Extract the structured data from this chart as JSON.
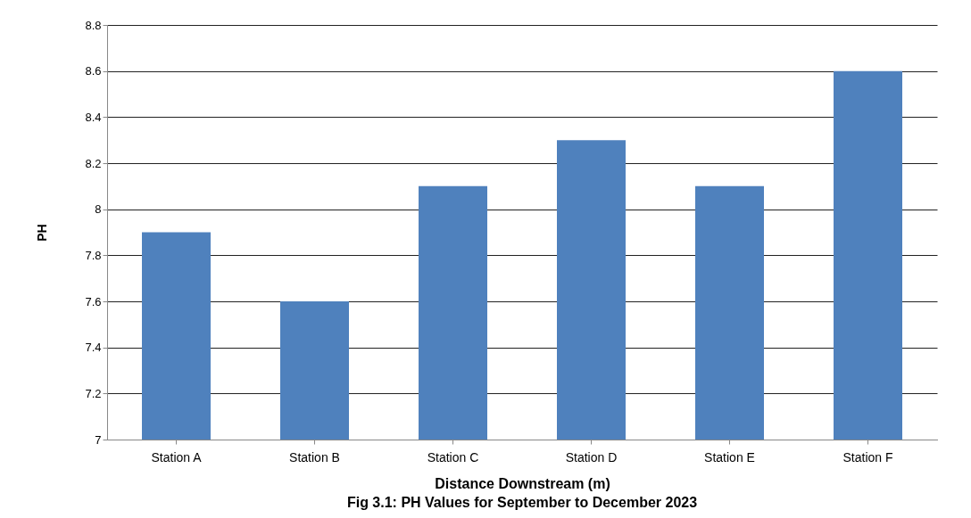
{
  "chart_data": {
    "type": "bar",
    "xlabel": "Distance Downstream (m)",
    "ylabel": "PH",
    "categories": [
      "Station A",
      "Station B",
      "Station C",
      "Station D",
      "Station E",
      "Station F"
    ],
    "values": [
      7.9,
      7.6,
      8.1,
      8.3,
      8.1,
      8.6
    ],
    "color": "#4f81bd",
    "ylim": [
      7,
      8.8
    ],
    "yticks": [
      7,
      7.2,
      7.4,
      7.6,
      7.8,
      8,
      8.2,
      8.4,
      8.6,
      8.8
    ],
    "grid": "y",
    "annotations": [
      "Fig 3.1: PH Values for September to December 2023"
    ]
  }
}
